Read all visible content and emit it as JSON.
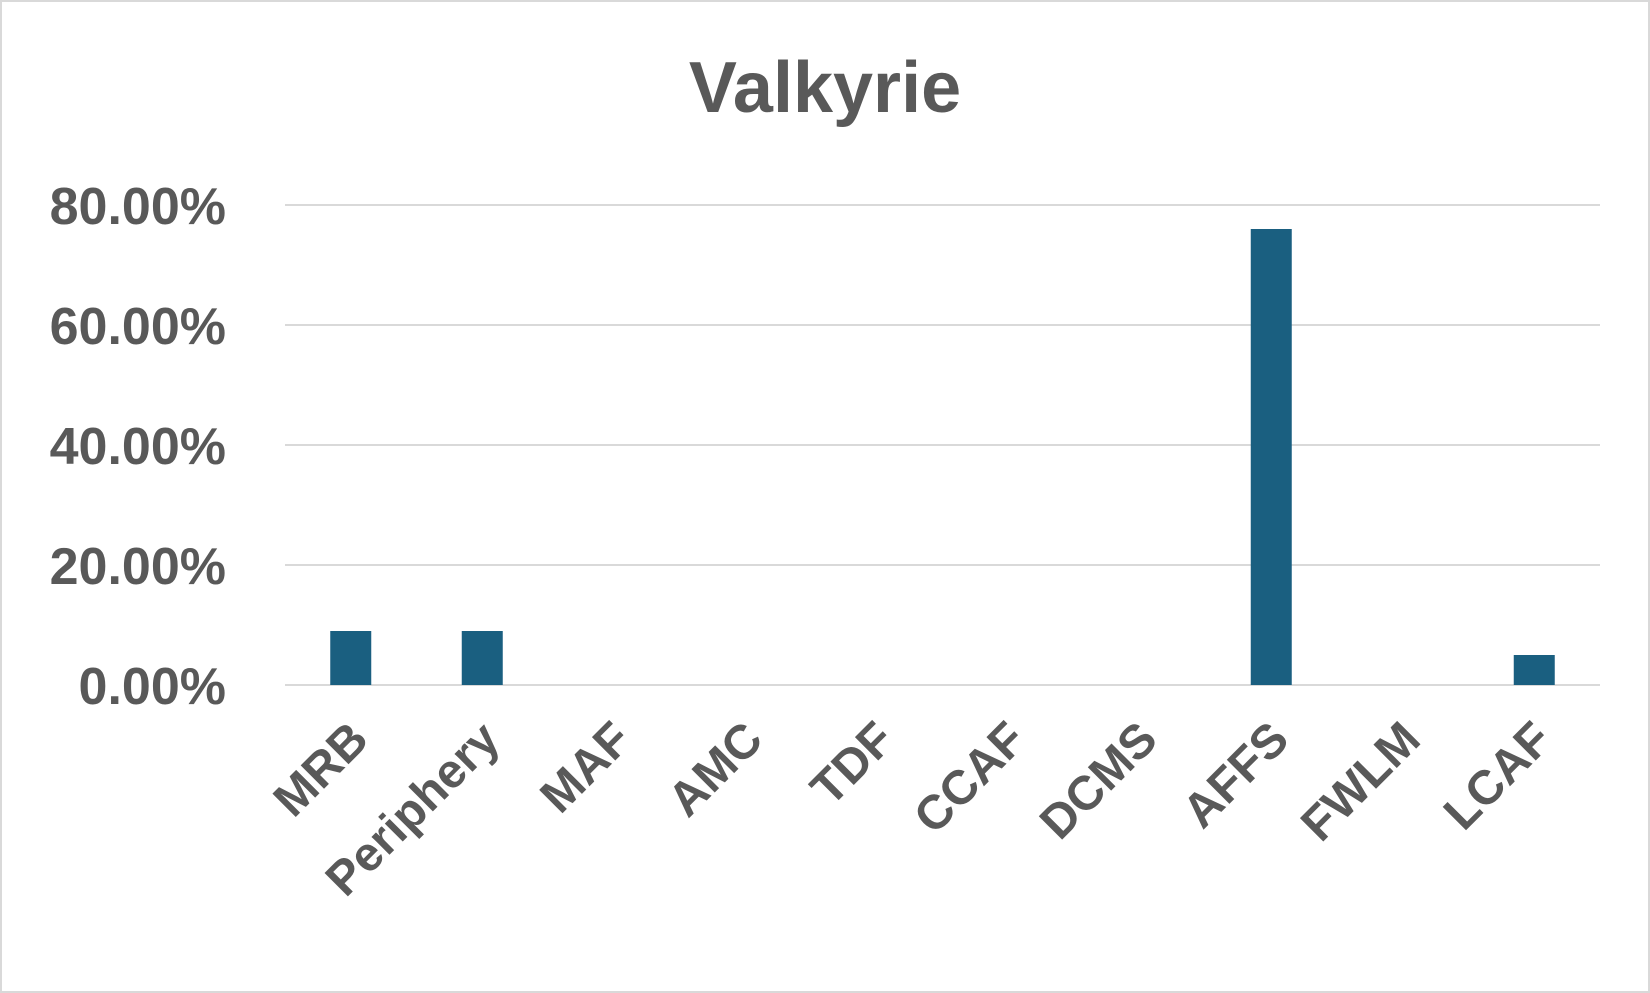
{
  "chart_data": {
    "type": "bar",
    "title": "Valkyrie",
    "categories": [
      "MRB",
      "Periphery",
      "MAF",
      "AMC",
      "TDF",
      "CCAF",
      "DCMS",
      "AFFS",
      "FWLM",
      "LCAF"
    ],
    "values": [
      0.09,
      0.09,
      0,
      0,
      0,
      0,
      0,
      0.76,
      0,
      0.05
    ],
    "ylim": [
      0,
      0.8
    ],
    "yticks": [
      0,
      0.2,
      0.4,
      0.6,
      0.8
    ],
    "ytick_labels": [
      "0.00%",
      "20.00%",
      "40.00%",
      "60.00%",
      "80.00%"
    ],
    "xlabel": "",
    "ylabel": "",
    "grid": true,
    "legend": "none",
    "bar_color": "#1a5f80",
    "grid_color": "#d9d9d9"
  }
}
